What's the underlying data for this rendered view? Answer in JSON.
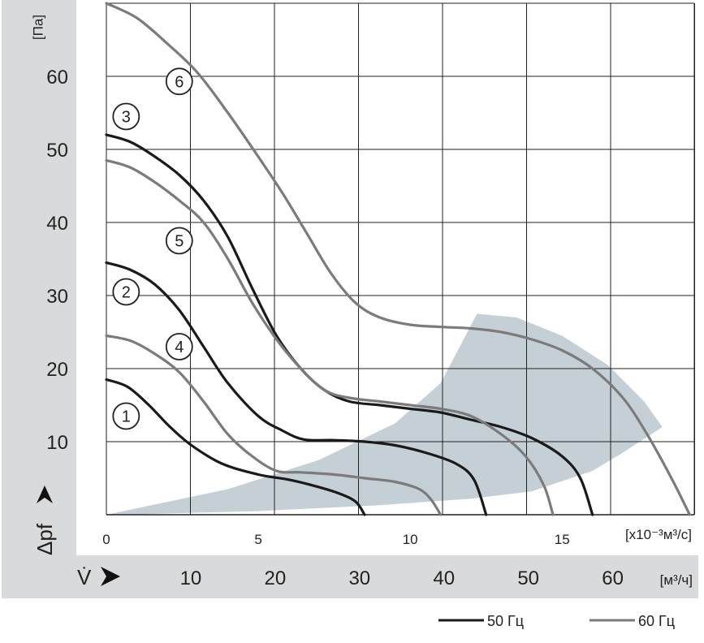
{
  "chart_data": {
    "type": "line",
    "y_axis": {
      "unit": "[Па]",
      "label": "Δpf",
      "ticks": [
        10,
        20,
        30,
        40,
        50,
        60
      ],
      "ylim": [
        0,
        70
      ]
    },
    "x_axis": {
      "unit": "[x10⁻³м³/с]",
      "ticks": [
        0,
        5,
        10,
        15
      ],
      "xlim": [
        0,
        19.35
      ]
    },
    "flow_axis": {
      "label": "V̇",
      "unit": "[м³/ч]",
      "ticks": [
        10,
        20,
        30,
        40,
        50,
        60
      ]
    },
    "grid": true,
    "shaded_region": {
      "description": "operating range",
      "color": "#c4d0d6",
      "polygon": [
        [
          0,
          0
        ],
        [
          4,
          3.5
        ],
        [
          7,
          7.5
        ],
        [
          9.5,
          12.5
        ],
        [
          11,
          18
        ],
        [
          12.2,
          27.5
        ],
        [
          13.5,
          27
        ],
        [
          15,
          24.5
        ],
        [
          16.5,
          20.5
        ],
        [
          17.7,
          15.5
        ],
        [
          18.3,
          12
        ],
        [
          17,
          8.5
        ],
        [
          16,
          6
        ],
        [
          14,
          3.2
        ],
        [
          12,
          2.2
        ],
        [
          9,
          1.3
        ],
        [
          5,
          0.5
        ],
        [
          1,
          0.05
        ]
      ]
    },
    "series": [
      {
        "name": "1",
        "frequency": "50 Гц",
        "color": "#1a1a1a",
        "label_at": [
          0.65,
          13.5
        ],
        "points": [
          [
            0,
            18.5
          ],
          [
            0.7,
            17.5
          ],
          [
            1.4,
            15
          ],
          [
            2.1,
            12
          ],
          [
            2.8,
            9.5
          ],
          [
            3.8,
            7
          ],
          [
            5,
            5.5
          ],
          [
            6,
            4.8
          ],
          [
            6.8,
            4
          ],
          [
            7.6,
            3
          ],
          [
            8.2,
            1.8
          ],
          [
            8.5,
            0
          ]
        ]
      },
      {
        "name": "2",
        "frequency": "50 Гц",
        "color": "#1a1a1a",
        "label_at": [
          0.65,
          30.5
        ],
        "points": [
          [
            0,
            34.5
          ],
          [
            0.8,
            33.5
          ],
          [
            1.6,
            31.5
          ],
          [
            2.4,
            28
          ],
          [
            3.2,
            23
          ],
          [
            4,
            18
          ],
          [
            5,
            13.5
          ],
          [
            5.8,
            11.5
          ],
          [
            6.5,
            10.3
          ],
          [
            7.5,
            10.2
          ],
          [
            8.5,
            10
          ],
          [
            9.5,
            9.5
          ],
          [
            10.5,
            8.5
          ],
          [
            11.5,
            7
          ],
          [
            12.1,
            4.8
          ],
          [
            12.5,
            0
          ]
        ]
      },
      {
        "name": "3",
        "frequency": "50 Гц",
        "color": "#1a1a1a",
        "label_at": [
          0.65,
          54.5
        ],
        "points": [
          [
            0,
            52
          ],
          [
            0.8,
            51
          ],
          [
            1.6,
            49
          ],
          [
            2.4,
            46.5
          ],
          [
            3.2,
            43
          ],
          [
            4,
            38
          ],
          [
            4.8,
            31
          ],
          [
            5.6,
            24.5
          ],
          [
            6.4,
            20
          ],
          [
            7.2,
            17
          ],
          [
            8,
            15.5
          ],
          [
            9,
            15
          ],
          [
            10,
            14.5
          ],
          [
            11,
            14
          ],
          [
            12,
            13
          ],
          [
            13,
            12
          ],
          [
            14,
            10.5
          ],
          [
            15,
            8
          ],
          [
            15.6,
            5
          ],
          [
            16,
            0
          ]
        ]
      },
      {
        "name": "4",
        "frequency": "60 Гц",
        "color": "#7b7b7b",
        "label_at": [
          2.4,
          23
        ],
        "points": [
          [
            0,
            24.5
          ],
          [
            0.8,
            23.8
          ],
          [
            1.6,
            22
          ],
          [
            2.4,
            19.5
          ],
          [
            3.2,
            15.5
          ],
          [
            4,
            11
          ],
          [
            4.8,
            8
          ],
          [
            5.6,
            6
          ],
          [
            6.4,
            5.8
          ],
          [
            7.5,
            5.5
          ],
          [
            8.5,
            5
          ],
          [
            9.5,
            4.5
          ],
          [
            10.3,
            3.5
          ],
          [
            10.7,
            2
          ],
          [
            11,
            0
          ]
        ]
      },
      {
        "name": "5",
        "frequency": "60 Гц",
        "color": "#7b7b7b",
        "label_at": [
          2.4,
          37.5
        ],
        "points": [
          [
            0,
            48.5
          ],
          [
            0.8,
            47.5
          ],
          [
            1.6,
            45.5
          ],
          [
            2.4,
            43
          ],
          [
            3.2,
            40
          ],
          [
            4,
            35
          ],
          [
            4.8,
            29
          ],
          [
            5.6,
            24
          ],
          [
            6.4,
            20
          ],
          [
            7.2,
            17
          ],
          [
            8,
            16
          ],
          [
            9,
            15.5
          ],
          [
            10,
            15
          ],
          [
            11,
            14.5
          ],
          [
            12,
            13.5
          ],
          [
            13,
            11
          ],
          [
            13.8,
            8
          ],
          [
            14.4,
            4
          ],
          [
            14.7,
            0
          ]
        ]
      },
      {
        "name": "6",
        "frequency": "60 Гц",
        "color": "#7b7b7b",
        "label_at": [
          2.4,
          59.3
        ],
        "points": [
          [
            0,
            70
          ],
          [
            1,
            68
          ],
          [
            2,
            64.5
          ],
          [
            3,
            60.5
          ],
          [
            4,
            55
          ],
          [
            5,
            49
          ],
          [
            5.8,
            44
          ],
          [
            6.6,
            38.5
          ],
          [
            7.4,
            33
          ],
          [
            8.2,
            29
          ],
          [
            9,
            27
          ],
          [
            10,
            26
          ],
          [
            11,
            25.7
          ],
          [
            12,
            25.5
          ],
          [
            13,
            25
          ],
          [
            14,
            24
          ],
          [
            15,
            22.5
          ],
          [
            16,
            20
          ],
          [
            17,
            16
          ],
          [
            17.8,
            11
          ],
          [
            18.6,
            5
          ],
          [
            19.2,
            0
          ]
        ]
      }
    ]
  },
  "legend": {
    "items": [
      {
        "label": "50 Гц",
        "color": "#1a1a1a"
      },
      {
        "label": "60 Гц",
        "color": "#7b7b7b"
      }
    ]
  }
}
